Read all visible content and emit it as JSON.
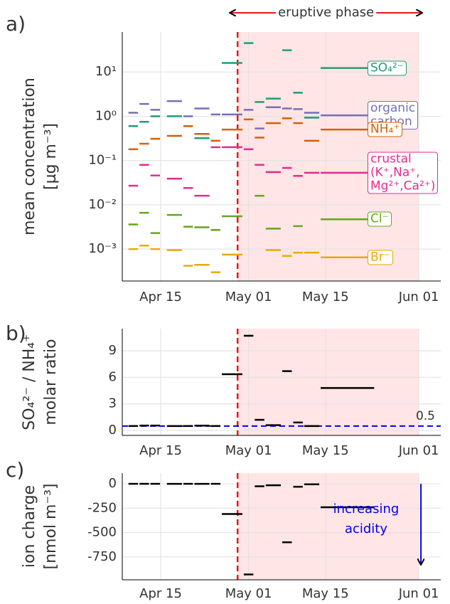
{
  "chart_data": [
    {
      "type": "segment",
      "panel": "a)",
      "annotation": "eruptive phase",
      "ylabel": [
        "mean concentration",
        "[µg m⁻³]"
      ],
      "log_y": true,
      "grid": true,
      "event_span": [
        "Apr 29",
        "Jun 01"
      ],
      "xlim": [
        "Apr 08",
        "Jun 05"
      ],
      "xticks": [
        "Apr 15",
        "May 01",
        "May 15",
        "Jun 01"
      ],
      "ylim": [
        0.00019,
        80
      ],
      "yticks": [
        {
          "value": 0.001,
          "label": "10⁻³"
        },
        {
          "value": 0.01,
          "label": "10⁻²"
        },
        {
          "value": 0.1,
          "label": "10⁻¹"
        },
        {
          "value": 1,
          "label": "10⁰"
        },
        {
          "value": 10,
          "label": "10¹"
        }
      ],
      "x_start": [
        "Apr 09",
        "Apr 11",
        "Apr 13",
        "Apr 16",
        "Apr 19",
        "Apr 21",
        "Apr 24",
        "Apr 26",
        "Apr 30",
        "May 02",
        "May 04",
        "May 07",
        "May 09",
        "May 11",
        "May 14"
      ],
      "x_end": [
        "Apr 11",
        "Apr 13",
        "Apr 15",
        "Apr 19",
        "Apr 21",
        "Apr 24",
        "Apr 26",
        "Apr 30",
        "May 02",
        "May 04",
        "May 07",
        "May 09",
        "May 11",
        "May 14",
        "May 24"
      ],
      "series": [
        {
          "name": "SO₄²⁻",
          "color": "#1b9e77",
          "values": [
            0.6,
            0.75,
            1.0,
            1.0,
            null,
            0.32,
            null,
            16,
            45,
            2.1,
            2.5,
            31,
            3.4,
            0.93,
            12.3
          ]
        },
        {
          "name": "organic\ncarbon",
          "color": "#7570b3",
          "values": [
            1.2,
            1.9,
            1.4,
            2.2,
            1.0,
            1.5,
            1.1,
            1.1,
            1.4,
            0.53,
            1.6,
            1.5,
            1.45,
            1.2,
            1.05
          ]
        },
        {
          "name": "NH₄⁺",
          "color": "#d95f02",
          "values": [
            0.18,
            0.24,
            0.31,
            0.36,
            0.6,
            0.4,
            0.28,
            0.5,
            0.85,
            0.33,
            0.7,
            0.9,
            0.7,
            0.28,
            0.5
          ]
        },
        {
          "name": "crustal\n(K⁺,Na⁺,\nMg²⁺,Ca²⁺)",
          "color": "#e7298a",
          "values": [
            0.027,
            0.08,
            0.046,
            0.039,
            0.024,
            0.016,
            0.2,
            0.2,
            0.18,
            0.08,
            0.055,
            0.068,
            0.045,
            0.053,
            0.053
          ]
        },
        {
          "name": "Cl⁻",
          "color": "#66a61e",
          "values": [
            0.0036,
            0.0066,
            0.0023,
            0.0059,
            0.0032,
            0.0031,
            0.0027,
            0.0055,
            null,
            0.016,
            0.0029,
            null,
            0.0033,
            null,
            0.0047
          ]
        },
        {
          "name": "Br⁻",
          "color": "#e6ab02",
          "values": [
            0.001,
            0.0012,
            0.001,
            0.00095,
            0.00042,
            0.00044,
            0.0003,
            0.00075,
            null,
            null,
            0.00095,
            0.0007,
            0.00083,
            0.00083,
            0.00065
          ]
        }
      ]
    },
    {
      "type": "segment",
      "panel": "b)",
      "ylabel": [
        "SO₄²⁻ / NH₄⁺",
        "molar ratio"
      ],
      "grid": true,
      "event_span": [
        "Apr 29",
        "Jun 01"
      ],
      "hline": 0.5,
      "hline_color": "#0000ee",
      "xlim": [
        "Apr 08",
        "Jun 05"
      ],
      "xticks": [
        "Apr 15",
        "May 01",
        "May 15",
        "Jun 01"
      ],
      "ylim": [
        -0.56,
        11.5
      ],
      "yticks": [
        0,
        3,
        6,
        9
      ],
      "x_start": [
        "Apr 09",
        "Apr 11",
        "Apr 13",
        "Apr 16",
        "Apr 19",
        "Apr 21",
        "Apr 24",
        "Apr 26",
        "Apr 30",
        "May 02",
        "May 04",
        "May 07",
        "May 09",
        "May 11",
        "May 14"
      ],
      "x_end": [
        "Apr 11",
        "Apr 13",
        "Apr 15",
        "Apr 19",
        "Apr 21",
        "Apr 24",
        "Apr 26",
        "Apr 30",
        "May 02",
        "May 04",
        "May 07",
        "May 09",
        "May 11",
        "May 14",
        "May 24"
      ],
      "series": [
        {
          "color": "#000000",
          "values": [
            0.5,
            0.55,
            0.55,
            0.5,
            0.5,
            0.55,
            0.5,
            6.35,
            10.7,
            1.2,
            0.6,
            6.7,
            0.9,
            0.5,
            4.8
          ]
        }
      ]
    },
    {
      "type": "segment",
      "panel": "c)",
      "ylabel": [
        "ion charge",
        "[nmol m⁻³]"
      ],
      "grid": true,
      "event_span": [
        "Apr 29",
        "Jun 01"
      ],
      "annotation": "increasing\nacidity",
      "annotation_color": "#0000ee",
      "xlim": [
        "Apr 08",
        "Jun 05"
      ],
      "xticks": [
        "Apr 15",
        "May 01",
        "May 15",
        "Jun 01"
      ],
      "ylim": [
        -985,
        110
      ],
      "yticks": [
        0,
        -250,
        -500,
        -750
      ],
      "x_start": [
        "Apr 09",
        "Apr 11",
        "Apr 13",
        "Apr 16",
        "Apr 19",
        "Apr 21",
        "Apr 24",
        "Apr 26",
        "Apr 30",
        "May 02",
        "May 04",
        "May 07",
        "May 09",
        "May 11",
        "May 14"
      ],
      "x_end": [
        "Apr 11",
        "Apr 13",
        "Apr 15",
        "Apr 19",
        "Apr 21",
        "Apr 24",
        "Apr 26",
        "Apr 30",
        "May 02",
        "May 04",
        "May 07",
        "May 09",
        "May 11",
        "May 14",
        "May 24"
      ],
      "series": [
        {
          "color": "#000000",
          "values": [
            0,
            0,
            0,
            0,
            0,
            0,
            0,
            -310,
            -930,
            -25,
            -15,
            -600,
            -30,
            -5,
            -240
          ]
        }
      ]
    }
  ]
}
